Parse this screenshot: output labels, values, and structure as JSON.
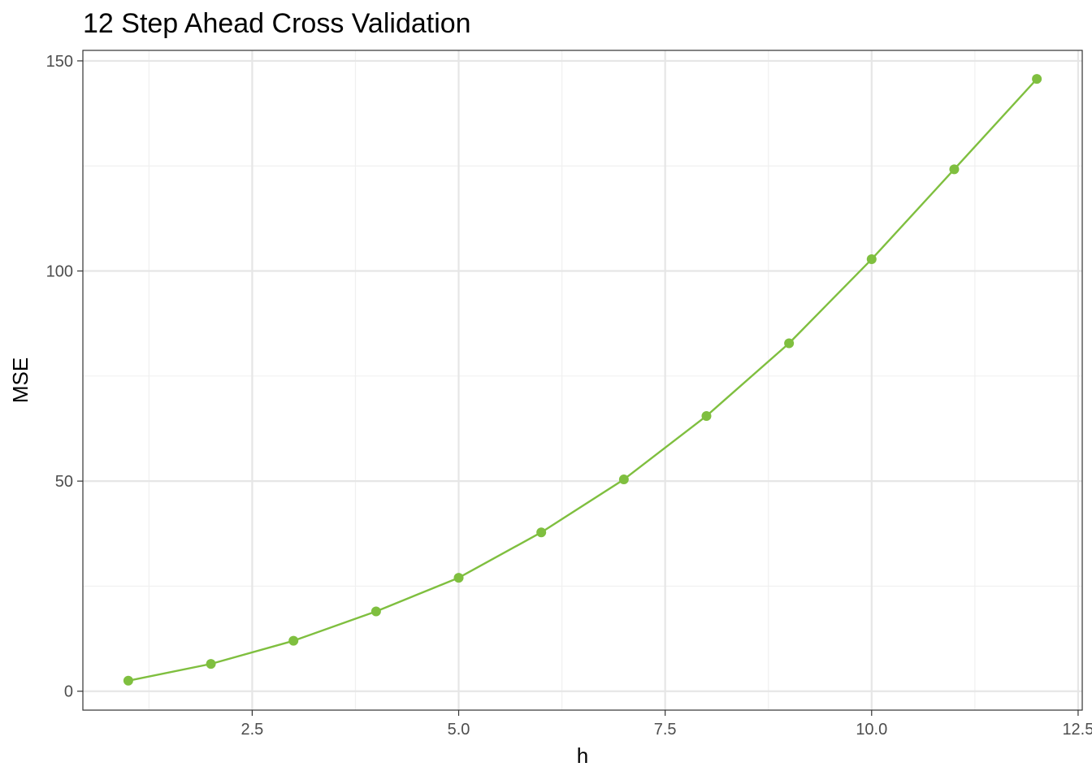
{
  "chart_data": {
    "type": "line",
    "title": "12 Step Ahead Cross Validation",
    "xlabel": "h",
    "ylabel": "MSE",
    "x": [
      1,
      2,
      3,
      4,
      5,
      6,
      7,
      8,
      9,
      10,
      11,
      12
    ],
    "series": [
      {
        "values": [
          2.5,
          6.5,
          12.0,
          19.0,
          27.0,
          37.8,
          50.4,
          65.5,
          82.8,
          102.8,
          124.2,
          145.7
        ],
        "color": "#7fbf3f"
      }
    ],
    "xlim": [
      0.45,
      12.55
    ],
    "ylim": [
      -4.5,
      152.5
    ],
    "x_ticks": [
      2.5,
      5.0,
      7.5,
      10.0,
      12.5
    ],
    "x_tick_labels": [
      "2.5",
      "5.0",
      "7.5",
      "10.0",
      "12.5"
    ],
    "y_ticks": [
      0,
      50,
      100,
      150
    ],
    "y_tick_labels": [
      "0",
      "50",
      "100",
      "150"
    ],
    "grid": true,
    "legend": "none"
  }
}
